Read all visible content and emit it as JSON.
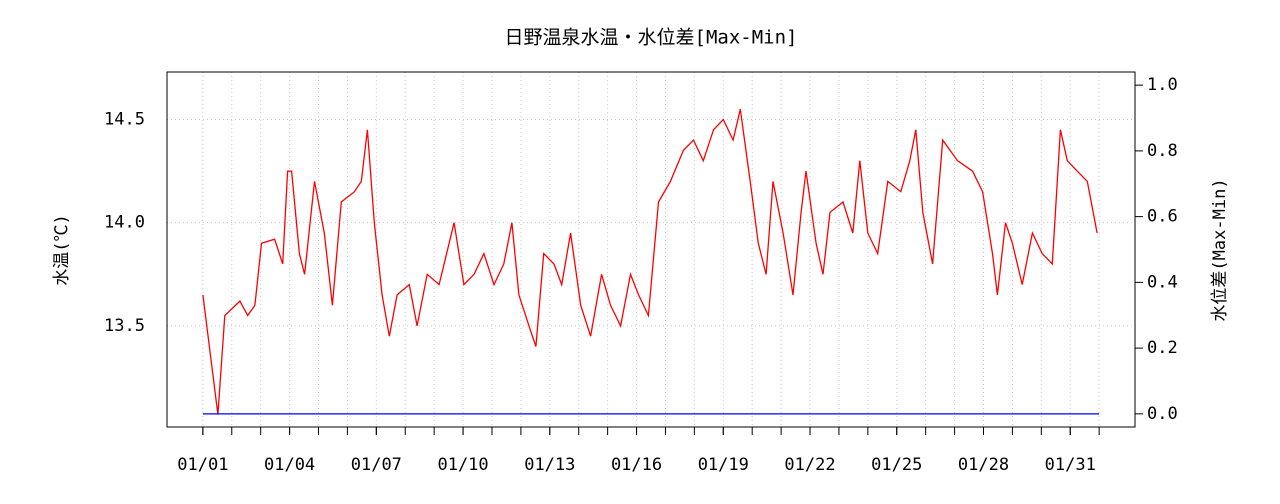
{
  "chart_data": {
    "type": "line",
    "title": "日野温泉水温・水位差[Max-Min]",
    "ylabel": "水温(℃)",
    "y2label": "水位差(Max-Min)",
    "xlim": [
      -0.24,
      33.24
    ],
    "xticks": [
      {
        "value": 1,
        "label": "01/01"
      },
      {
        "value": 4,
        "label": "01/04"
      },
      {
        "value": 7,
        "label": "01/07"
      },
      {
        "value": 10,
        "label": "01/10"
      },
      {
        "value": 13,
        "label": "01/13"
      },
      {
        "value": 16,
        "label": "01/16"
      },
      {
        "value": 19,
        "label": "01/19"
      },
      {
        "value": 22,
        "label": "01/22"
      },
      {
        "value": 25,
        "label": "01/25"
      },
      {
        "value": 28,
        "label": "01/28"
      },
      {
        "value": 31,
        "label": "01/31"
      }
    ],
    "xminorticks": [
      1,
      2,
      3,
      4,
      5,
      6,
      7,
      8,
      9,
      10,
      11,
      12,
      13,
      14,
      15,
      16,
      17,
      18,
      19,
      20,
      21,
      22,
      23,
      24,
      25,
      26,
      27,
      28,
      29,
      30,
      31,
      32
    ],
    "ylim": [
      13.01,
      14.73
    ],
    "yticks": [
      13.5,
      {
        "value": 14,
        "label": "14.0"
      },
      14.5
    ],
    "y2lim": [
      -0.04,
      1.04
    ],
    "y2ticks": [
      {
        "value": 0,
        "label": "0.0"
      },
      0.2,
      0.4,
      0.6,
      0.8,
      {
        "value": 1,
        "label": "1.0"
      }
    ],
    "grid": true,
    "series": [
      {
        "color": "#ff0000",
        "x": [
          1,
          1.52,
          1.76,
          2.28,
          2.55,
          2.8,
          3.03,
          3.48,
          3.76,
          3.93,
          4.07,
          4.34,
          4.52,
          4.86,
          5.2,
          5.48,
          5.79,
          6.24,
          6.48,
          6.69,
          6.93,
          7.2,
          7.45,
          7.72,
          8.14,
          8.41,
          8.76,
          9.17,
          9.69,
          10.03,
          10.38,
          10.72,
          11.07,
          11.41,
          11.69,
          11.93,
          12.28,
          12.52,
          12.79,
          13.14,
          13.41,
          13.72,
          14.07,
          14.41,
          14.79,
          15.1,
          15.45,
          15.79,
          16.07,
          16.41,
          16.76,
          17.17,
          17.62,
          17.97,
          18.31,
          18.66,
          19,
          19.34,
          19.59,
          19.93,
          20.21,
          20.48,
          20.72,
          21.07,
          21.41,
          21.69,
          21.86,
          22.21,
          22.45,
          22.69,
          23.14,
          23.48,
          23.72,
          24,
          24.34,
          24.69,
          25.14,
          25.45,
          25.66,
          25.9,
          26.24,
          26.59,
          27.1,
          27.62,
          27.97,
          28.31,
          28.48,
          28.76,
          29,
          29.34,
          29.69,
          30.03,
          30.38,
          30.66,
          30.9,
          31.24,
          31.59,
          31.93
        ],
        "values": [
          13.65,
          13.07,
          13.55,
          13.62,
          13.55,
          13.6,
          13.9,
          13.92,
          13.8,
          14.25,
          14.25,
          13.85,
          13.75,
          14.2,
          13.95,
          13.6,
          14.1,
          14.15,
          14.2,
          14.45,
          14,
          13.65,
          13.45,
          13.65,
          13.7,
          13.5,
          13.75,
          13.7,
          14,
          13.7,
          13.75,
          13.85,
          13.7,
          13.8,
          14,
          13.65,
          13.5,
          13.4,
          13.85,
          13.8,
          13.7,
          13.95,
          13.6,
          13.45,
          13.75,
          13.6,
          13.5,
          13.75,
          13.65,
          13.55,
          14.1,
          14.2,
          14.35,
          14.4,
          14.3,
          14.45,
          14.5,
          14.4,
          14.55,
          14.2,
          13.9,
          13.75,
          14.2,
          13.95,
          13.65,
          14.05,
          14.25,
          13.9,
          13.75,
          14.05,
          14.1,
          13.95,
          14.3,
          13.95,
          13.85,
          14.2,
          14.15,
          14.3,
          14.45,
          14.05,
          13.8,
          14.4,
          14.3,
          14.25,
          14.15,
          13.85,
          13.65,
          14,
          13.9,
          13.7,
          13.95,
          13.85,
          13.8,
          14.45,
          14.3,
          14.25,
          14.2,
          13.95
        ]
      },
      {
        "color": "#0000ff",
        "axis": "y2",
        "x": [
          1,
          32
        ],
        "values": [
          0,
          0
        ]
      }
    ]
  }
}
